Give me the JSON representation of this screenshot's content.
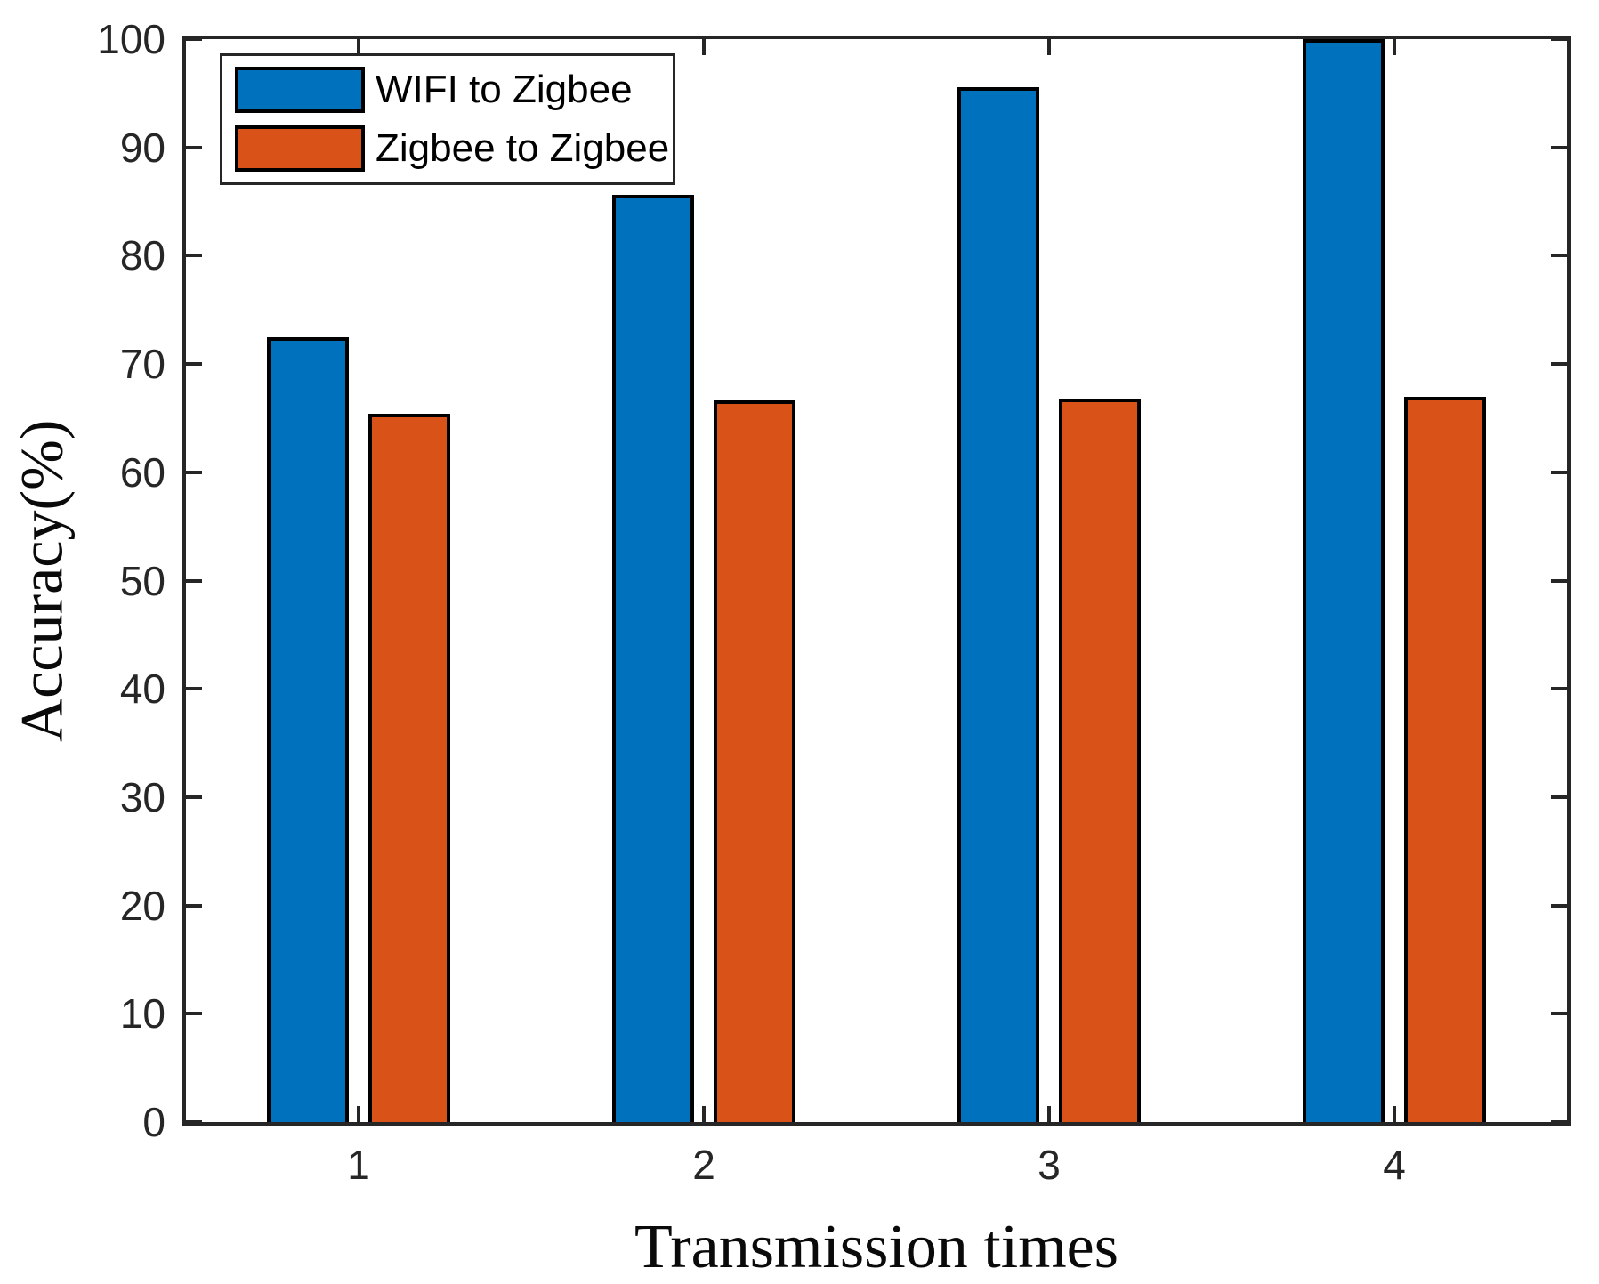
{
  "chart_data": {
    "type": "bar",
    "title": "",
    "xlabel": "Transmission times",
    "ylabel": "Accuracy(%)",
    "categories": [
      "1",
      "2",
      "3",
      "4"
    ],
    "series": [
      {
        "name": "WIFI to Zigbee",
        "color": "#0072BD",
        "values": [
          72.5,
          85.6,
          95.6,
          100.0
        ]
      },
      {
        "name": "Zigbee to Zigbee",
        "color": "#D95319",
        "values": [
          65.4,
          66.6,
          66.8,
          67.0
        ]
      }
    ],
    "ylim": [
      0,
      100
    ],
    "y_ticks": [
      0,
      10,
      20,
      30,
      40,
      50,
      60,
      70,
      80,
      90,
      100
    ],
    "grid": false,
    "legend_position": "top-left",
    "bar_edge_color": "#000000",
    "axis_color": "#262626"
  }
}
